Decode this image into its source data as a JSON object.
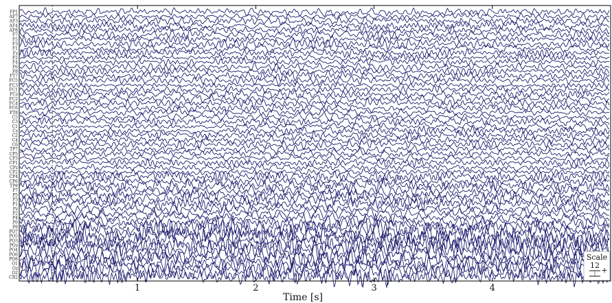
{
  "chart_data": {
    "type": "line",
    "xlabel": "Time [s]",
    "xlim": [
      0,
      5
    ],
    "xticks": [
      1,
      2,
      3,
      4
    ],
    "xtick_labels": [
      "1",
      "2",
      "3",
      "4"
    ],
    "vertical_marker_x": 0.28,
    "trace_color": "#1f1f6e",
    "channels": [
      "FP1",
      "AF7",
      "AF3",
      "AF4",
      "AF8",
      "F7",
      "F5",
      "F3",
      "F1",
      "Fz",
      "F2",
      "F4",
      "F6",
      "F8",
      "FT7",
      "FC5",
      "FC3",
      "FC1",
      "FCz",
      "FC2",
      "FC4",
      "FC6",
      "FT8",
      "C5",
      "C3",
      "C1",
      "Cz",
      "C2",
      "C4",
      "C6",
      "TP7",
      "CP5",
      "CP3",
      "CP1",
      "CPz",
      "CP2",
      "CP4",
      "CP6",
      "TP8",
      "P7",
      "P5",
      "P3",
      "P1",
      "Pz",
      "P2",
      "P4",
      "P6",
      "P8",
      "PO7",
      "PO5",
      "PO3",
      "POz",
      "PO4",
      "PO6",
      "PO8",
      "O1",
      "Oz",
      "O2",
      "CB2"
    ],
    "visible_channel_labels": [
      "FP1",
      "AF7",
      "FP2",
      "AF3",
      "AF4",
      "F5",
      "F3",
      "F1",
      "F2",
      "F4",
      "F6",
      "F8",
      "FT7",
      "FC5",
      "FC3",
      "FC1",
      "FC2",
      "FC4",
      "FC6",
      "FT8",
      "C5",
      "C3",
      "C1",
      "C2",
      "C4",
      "C6",
      "TP7",
      "CP5",
      "CP3",
      "CP1",
      "CP2",
      "CP4",
      "CP6",
      "TP8",
      "P7",
      "P5",
      "P3",
      "P1",
      "P2",
      "P4",
      "P6",
      "P8",
      "PO7",
      "PO5",
      "PO3",
      "POz",
      "PO4",
      "PO6",
      "PO8",
      "O1",
      "Oz",
      "O2",
      "CB2"
    ],
    "scale": {
      "label": "Scale",
      "value": "12",
      "sign": "+"
    }
  }
}
